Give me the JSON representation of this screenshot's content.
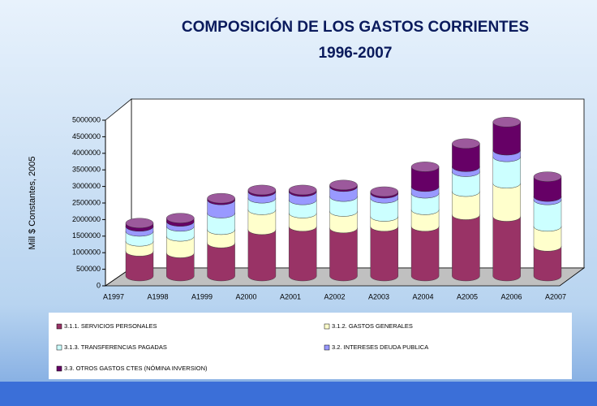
{
  "chart_data": {
    "type": "bar3d-stacked",
    "title": "COMPOSICIÓN DE LOS GASTOS CORRIENTES",
    "subtitle": "1996-2007",
    "y_label": "Mill $ Constantes, 2005",
    "categories": [
      "A1997",
      "A1998",
      "A1999",
      "A2000",
      "A2001",
      "A2002",
      "A2003",
      "A2004",
      "A2005",
      "A2006",
      "A2007"
    ],
    "series": [
      {
        "name": "3.1.1.  SERVICIOS PERSONALES",
        "color": "#993366",
        "values": [
          750000,
          700000,
          1000000,
          1400000,
          1500000,
          1450000,
          1500000,
          1500000,
          1850000,
          1800000,
          900000
        ]
      },
      {
        "name": "3.1.2. GASTOS GENERALES",
        "color": "#ffffcc",
        "values": [
          300000,
          500000,
          400000,
          600000,
          400000,
          500000,
          300000,
          500000,
          700000,
          1000000,
          600000
        ]
      },
      {
        "name": "3.1.3. TRANSFERENCIAS PAGADAS",
        "color": "#ccffff",
        "values": [
          300000,
          300000,
          500000,
          350000,
          400000,
          450000,
          550000,
          500000,
          600000,
          800000,
          800000
        ]
      },
      {
        "name": "3.2.   INTERESES DEUDA PUBLICA",
        "color": "#9999ff",
        "values": [
          150000,
          150000,
          400000,
          200000,
          250000,
          300000,
          150000,
          200000,
          150000,
          200000,
          100000
        ]
      },
      {
        "name": "3.3.   OTROS GASTOS CTES (NÓMINA INVERSION)",
        "color": "#660066",
        "values": [
          100000,
          100000,
          50000,
          50000,
          50000,
          50000,
          50000,
          600000,
          700000,
          850000,
          600000
        ]
      }
    ],
    "ylim": [
      0,
      5000000
    ],
    "yticks": [
      0,
      500000,
      1000000,
      1500000,
      2000000,
      2500000,
      3000000,
      3500000,
      4000000,
      4500000,
      5000000
    ],
    "grid": false
  }
}
